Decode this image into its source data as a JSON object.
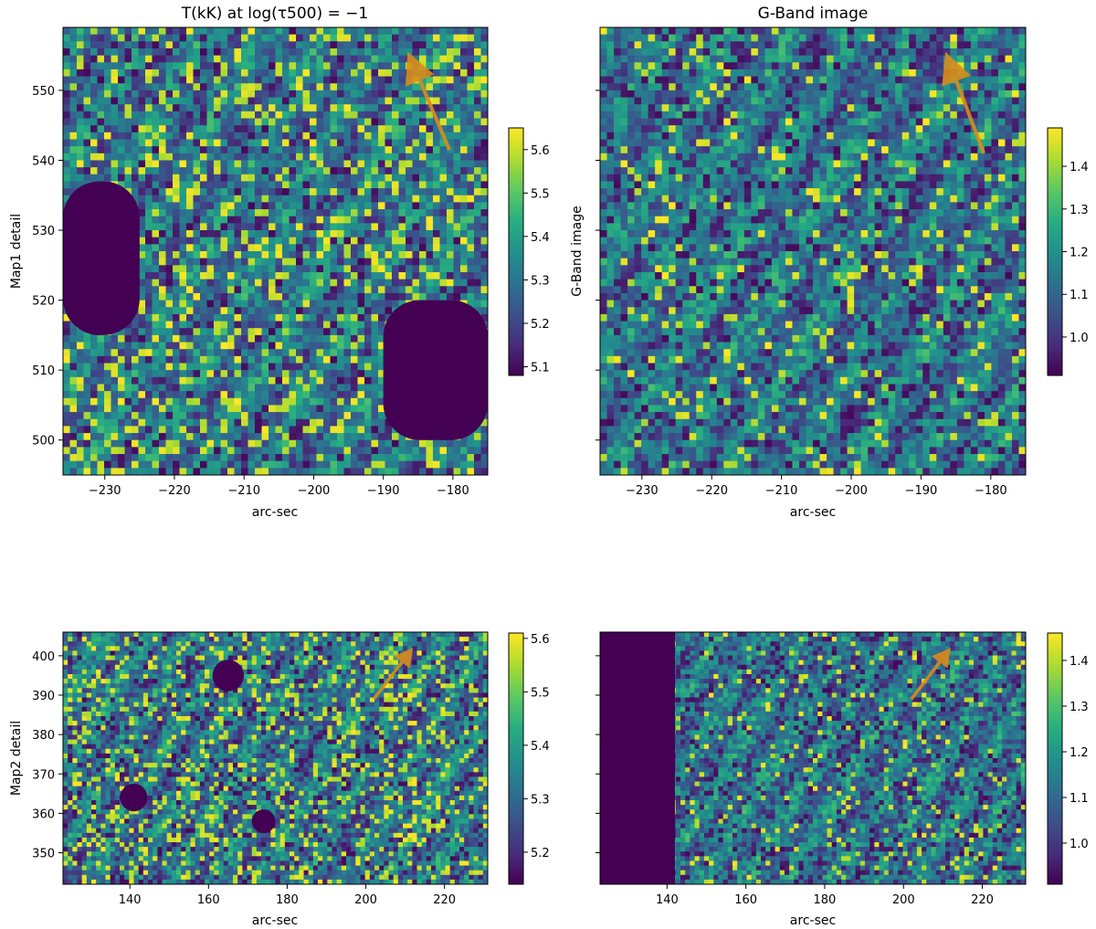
{
  "figure": {
    "panels": [
      {
        "id": "p1",
        "title": "T(kK) at log(τ500) = −1",
        "ylabel": "Map1 detail",
        "xlabel": "arc-sec",
        "xlim": [
          -236,
          -175
        ],
        "ylim": [
          495,
          559
        ],
        "xticks": [
          -230,
          -220,
          -210,
          -200,
          -190,
          -180
        ],
        "yticks": [
          500,
          510,
          520,
          530,
          540,
          550
        ],
        "show_ytick_labels": true,
        "colorbar": {
          "ticks": [
            5.1,
            5.2,
            5.3,
            5.4,
            5.5,
            5.6
          ],
          "range": [
            5.08,
            5.65
          ]
        },
        "arrow": {
          "from": [
            -180.5,
            541.5
          ],
          "to": [
            -186.5,
            555.5
          ]
        }
      },
      {
        "id": "p2",
        "title": "G-Band image",
        "ylabel": "G-Band image",
        "xlabel": "arc-sec",
        "xlim": [
          -236,
          -175
        ],
        "ylim": [
          495,
          559
        ],
        "xticks": [
          -230,
          -220,
          -210,
          -200,
          -190,
          -180
        ],
        "yticks": [
          500,
          510,
          520,
          530,
          540,
          550
        ],
        "show_ytick_labels": false,
        "colorbar": {
          "ticks": [
            1.0,
            1.1,
            1.2,
            1.3,
            1.4
          ],
          "range": [
            0.91,
            1.49
          ]
        },
        "arrow": {
          "from": [
            -181,
            541
          ],
          "to": [
            -186.5,
            555.5
          ]
        }
      },
      {
        "id": "p3",
        "title": "",
        "ylabel": "Map2 detail",
        "xlabel": "arc-sec",
        "xlim": [
          123,
          231
        ],
        "ylim": [
          342,
          406
        ],
        "xticks": [
          140,
          160,
          180,
          200,
          220
        ],
        "yticks": [
          350,
          360,
          370,
          380,
          390,
          400
        ],
        "show_ytick_labels": true,
        "colorbar": {
          "ticks": [
            5.2,
            5.3,
            5.4,
            5.5,
            5.6
          ],
          "range": [
            5.14,
            5.61
          ]
        },
        "arrow": {
          "from": [
            202,
            389
          ],
          "to": [
            212,
            402
          ]
        }
      },
      {
        "id": "p4",
        "title": "",
        "ylabel": "",
        "xlabel": "arc-sec",
        "xlim": [
          123,
          231
        ],
        "ylim": [
          342,
          406
        ],
        "xticks": [
          140,
          160,
          180,
          200,
          220
        ],
        "yticks": [
          350,
          360,
          370,
          380,
          390,
          400
        ],
        "show_ytick_labels": false,
        "colorbar": {
          "ticks": [
            1.0,
            1.1,
            1.2,
            1.3,
            1.4
          ],
          "range": [
            0.91,
            1.46
          ]
        },
        "arrow": {
          "from": [
            202,
            389
          ],
          "to": [
            212,
            402
          ]
        }
      }
    ],
    "colormap": "viridis",
    "arrow_color": "#d98c1a"
  },
  "chart_data": [
    {
      "type": "heatmap",
      "title": "T(kK) at log(τ500) = −1",
      "xlabel": "arc-sec",
      "ylabel": "Map1 detail",
      "xlim": [
        -236,
        -175
      ],
      "ylim": [
        495,
        559
      ],
      "colorbar_range": [
        5.08,
        5.65
      ],
      "colormap": "viridis",
      "dark_regions": [
        {
          "x_range": [
            -236,
            -225
          ],
          "y_range": [
            515,
            537
          ],
          "value": 5.08
        },
        {
          "x_range": [
            -190,
            -175
          ],
          "y_range": [
            500,
            520
          ],
          "value": 5.08
        }
      ],
      "annotation": "orange arrow from (-180.5, 541.5) pointing to (-186.5, 555.5)"
    },
    {
      "type": "heatmap",
      "title": "G-Band image",
      "xlabel": "arc-sec",
      "ylabel": "G-Band image",
      "xlim": [
        -236,
        -175
      ],
      "ylim": [
        495,
        559
      ],
      "colorbar_range": [
        0.91,
        1.49
      ],
      "colormap": "viridis",
      "annotation": "orange arrow from (-181, 541) pointing to (-186.5, 555.5)"
    },
    {
      "type": "heatmap",
      "title": "",
      "xlabel": "arc-sec",
      "ylabel": "Map2 detail",
      "xlim": [
        123,
        231
      ],
      "ylim": [
        342,
        406
      ],
      "colorbar_range": [
        5.14,
        5.61
      ],
      "colormap": "viridis",
      "dark_regions": [
        {
          "center": [
            165,
            395
          ],
          "radius": 4.0,
          "value": 5.14
        },
        {
          "center": [
            141,
            364
          ],
          "radius": 3.5,
          "value": 5.14
        },
        {
          "center": [
            174,
            358
          ],
          "radius": 3.0,
          "value": 5.14
        }
      ],
      "annotation": "orange arrow from (202, 389) pointing to (212, 402)"
    },
    {
      "type": "heatmap",
      "title": "",
      "xlabel": "arc-sec",
      "ylabel": "",
      "xlim": [
        123,
        231
      ],
      "ylim": [
        342,
        406
      ],
      "colorbar_range": [
        0.91,
        1.46
      ],
      "colormap": "viridis",
      "dark_regions": [
        {
          "x_range": [
            123,
            142
          ],
          "y_range": [
            342,
            406
          ],
          "value": 0.91
        }
      ],
      "annotation": "orange arrow from (202, 389) pointing to (212, 402)"
    }
  ]
}
